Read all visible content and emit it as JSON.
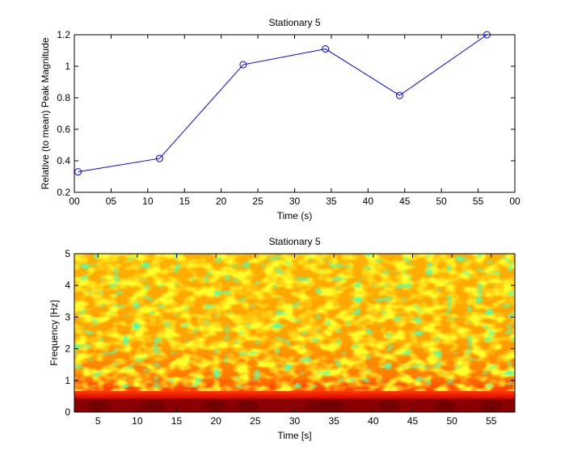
{
  "chart_data": [
    {
      "type": "line",
      "title": "Stationary 5",
      "xlabel": "Time (s)",
      "ylabel": "Relative (to mean) Peak Magnitude",
      "xlim": [
        0,
        60
      ],
      "ylim": [
        0.2,
        1.2
      ],
      "grid": false,
      "xtick_labels": [
        "00",
        "05",
        "10",
        "15",
        "20",
        "25",
        "30",
        "35",
        "40",
        "45",
        "50",
        "55",
        "00"
      ],
      "ytick_labels": [
        "0.2",
        "0.4",
        "0.6",
        "0.8",
        "1",
        "1.2"
      ],
      "series": [
        {
          "color": "#0000ff",
          "marker": "circle",
          "x": [
            0.5,
            11.6,
            23.0,
            34.2,
            44.3,
            56.2
          ],
          "y": [
            0.33,
            0.415,
            1.01,
            1.11,
            0.815,
            1.2
          ]
        }
      ]
    },
    {
      "type": "heatmap",
      "title": "Stationary 5",
      "xlabel": "Time [s]",
      "ylabel": "Frequency [Hz]",
      "xlim": [
        2,
        58
      ],
      "ylim": [
        0,
        5
      ],
      "colormap": "jet",
      "xtick_labels": [
        "5",
        "10",
        "15",
        "20",
        "25",
        "30",
        "35",
        "40",
        "45",
        "50",
        "55"
      ],
      "ytick_labels": [
        "0",
        "1",
        "2",
        "3",
        "4",
        "5"
      ],
      "description": "Spectrogram: high (dark red) energy band between 0 and 0.5 Hz; orange/yellow/green texture above."
    }
  ]
}
